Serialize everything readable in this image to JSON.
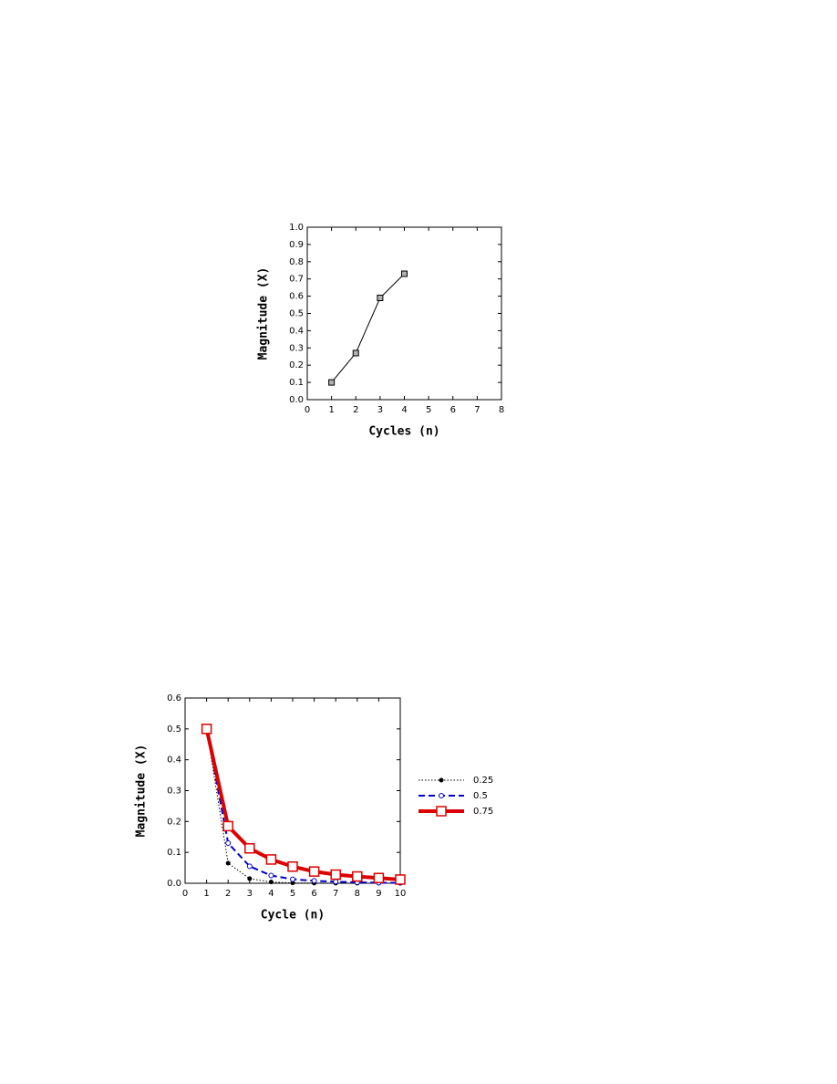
{
  "chart_data": [
    {
      "type": "line",
      "xlabel": "Cycles (n)",
      "ylabel": "Magnitude (X)",
      "x": [
        1,
        2,
        3,
        4
      ],
      "series": [
        {
          "color": "#000000",
          "marker": "square",
          "marker_fill": "#b0b0b0",
          "line_style": "solid",
          "line_width": 1,
          "values": [
            0.1,
            0.27,
            0.59,
            0.73
          ]
        }
      ],
      "xlim": [
        0,
        8
      ],
      "xticks": [
        0,
        1,
        2,
        3,
        4,
        5,
        6,
        7,
        8
      ],
      "ylim": [
        0,
        1
      ],
      "yticks": [
        {
          "value": 0,
          "label": "0.0"
        },
        0.1,
        0.2,
        0.3,
        0.4,
        0.5,
        0.6,
        0.7,
        0.8,
        0.9,
        {
          "value": 1,
          "label": "1.0"
        }
      ],
      "grid": false
    },
    {
      "type": "line",
      "xlabel": "Cycle (n)",
      "ylabel": "Magnitude (X)",
      "x": [
        1,
        2,
        3,
        4,
        5,
        6,
        7,
        8,
        9,
        10
      ],
      "series": [
        {
          "name": "0.25",
          "color": "#000000",
          "marker": "circle-filled",
          "line_style": "dotted",
          "line_width": 1,
          "values": [
            0.5,
            0.065,
            0.015,
            0.004,
            0.001,
            0.0005,
            0.0002,
            0.0001,
            0.0001,
            0.0001
          ]
        },
        {
          "name": "0.5",
          "color": "#0000cc",
          "marker": "circle-open",
          "line_style": "dashed",
          "line_width": 2,
          "values": [
            0.5,
            0.13,
            0.055,
            0.025,
            0.013,
            0.008,
            0.005,
            0.003,
            0.002,
            0.001
          ]
        },
        {
          "name": "0.75",
          "color": "#dd0000",
          "marker": "square-open",
          "line_style": "solid",
          "line_width": 4,
          "values": [
            0.5,
            0.185,
            0.113,
            0.077,
            0.054,
            0.038,
            0.028,
            0.022,
            0.017,
            0.012
          ]
        }
      ],
      "xlim": [
        0,
        10
      ],
      "xticks": [
        0,
        1,
        2,
        3,
        4,
        5,
        6,
        7,
        8,
        9,
        10
      ],
      "ylim": [
        0,
        0.6
      ],
      "yticks": [
        {
          "value": 0,
          "label": "0.0"
        },
        0.1,
        0.2,
        0.3,
        0.4,
        0.5,
        0.6
      ],
      "grid": false,
      "legend": "right"
    }
  ]
}
